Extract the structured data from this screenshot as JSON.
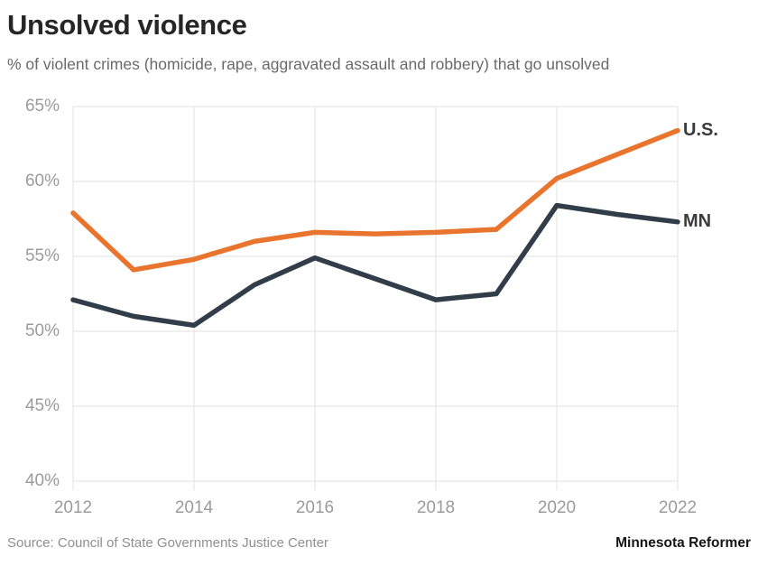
{
  "header": {
    "title": "Unsolved violence",
    "subtitle": "% of violent crimes (homicide, rape, aggravated assault and robbery) that go unsolved"
  },
  "footer": {
    "source": "Source: Council of State Governments Justice Center",
    "credit": "Minnesota Reformer"
  },
  "colors": {
    "us_line": "#e8742d",
    "mn_line": "#323d4a",
    "gridline": "#e2e2e2",
    "axis_text": "#9b9b9b",
    "series_label": "#3b3b3b"
  },
  "chart_data": {
    "type": "line",
    "title": "Unsolved violence",
    "subtitle": "% of violent crimes (homicide, rape, aggravated assault and robbery) that go unsolved",
    "x": [
      2012,
      2013,
      2014,
      2015,
      2016,
      2017,
      2018,
      2019,
      2020,
      2021,
      2022
    ],
    "x_ticks": [
      2012,
      2014,
      2016,
      2018,
      2020,
      2022
    ],
    "x_tick_labels": [
      "2012",
      "2014",
      "2016",
      "2018",
      "2020",
      "2022"
    ],
    "y_ticks": [
      40,
      45,
      50,
      55,
      60,
      65
    ],
    "y_tick_labels": [
      "40%",
      "45%",
      "50%",
      "55%",
      "60%",
      "65%"
    ],
    "xlim": [
      2012,
      2022
    ],
    "ylim": [
      40,
      65
    ],
    "grid": true,
    "legend_position": "end-of-line-labels",
    "series": [
      {
        "id": "us",
        "name": "U.S.",
        "color": "#e8742d",
        "values": [
          57.9,
          54.1,
          54.8,
          56.0,
          56.6,
          56.5,
          56.6,
          56.8,
          60.2,
          61.8,
          63.4
        ]
      },
      {
        "id": "mn",
        "name": "MN",
        "color": "#323d4a",
        "values": [
          52.1,
          51.0,
          50.4,
          53.1,
          54.9,
          53.5,
          52.1,
          52.5,
          58.4,
          57.8,
          57.3
        ]
      }
    ]
  }
}
